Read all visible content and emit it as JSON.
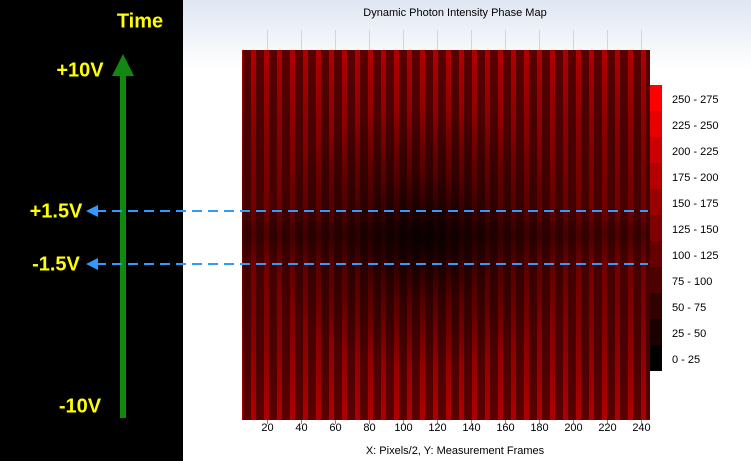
{
  "chart_data": {
    "type": "heatmap",
    "title": "Dynamic Photon Intensity Phase Map",
    "x_label": "X: Pixels/2, Y: Measurement Frames",
    "xlim": [
      5,
      245
    ],
    "xticks": [
      20,
      40,
      60,
      80,
      100,
      120,
      140,
      160,
      180,
      200,
      220,
      240
    ],
    "legend": [
      {
        "label": "250 - 275",
        "color": "#ff0000"
      },
      {
        "label": "225 - 250",
        "color": "#e60000"
      },
      {
        "label": "200 - 225",
        "color": "#cc0000"
      },
      {
        "label": "175 - 200",
        "color": "#b30000"
      },
      {
        "label": "150 - 175",
        "color": "#990000"
      },
      {
        "label": "125 - 150",
        "color": "#800000"
      },
      {
        "label": "100 - 125",
        "color": "#660000"
      },
      {
        "label": "75 - 100",
        "color": "#4d0000"
      },
      {
        "label": "50 - 75",
        "color": "#330000"
      },
      {
        "label": "25 - 50",
        "color": "#1a0000"
      },
      {
        "label": "0 - 25",
        "color": "#000000"
      }
    ],
    "annotations": [
      "Time",
      "+10V",
      "+1.5V",
      "-1.5V",
      "-10V"
    ]
  }
}
